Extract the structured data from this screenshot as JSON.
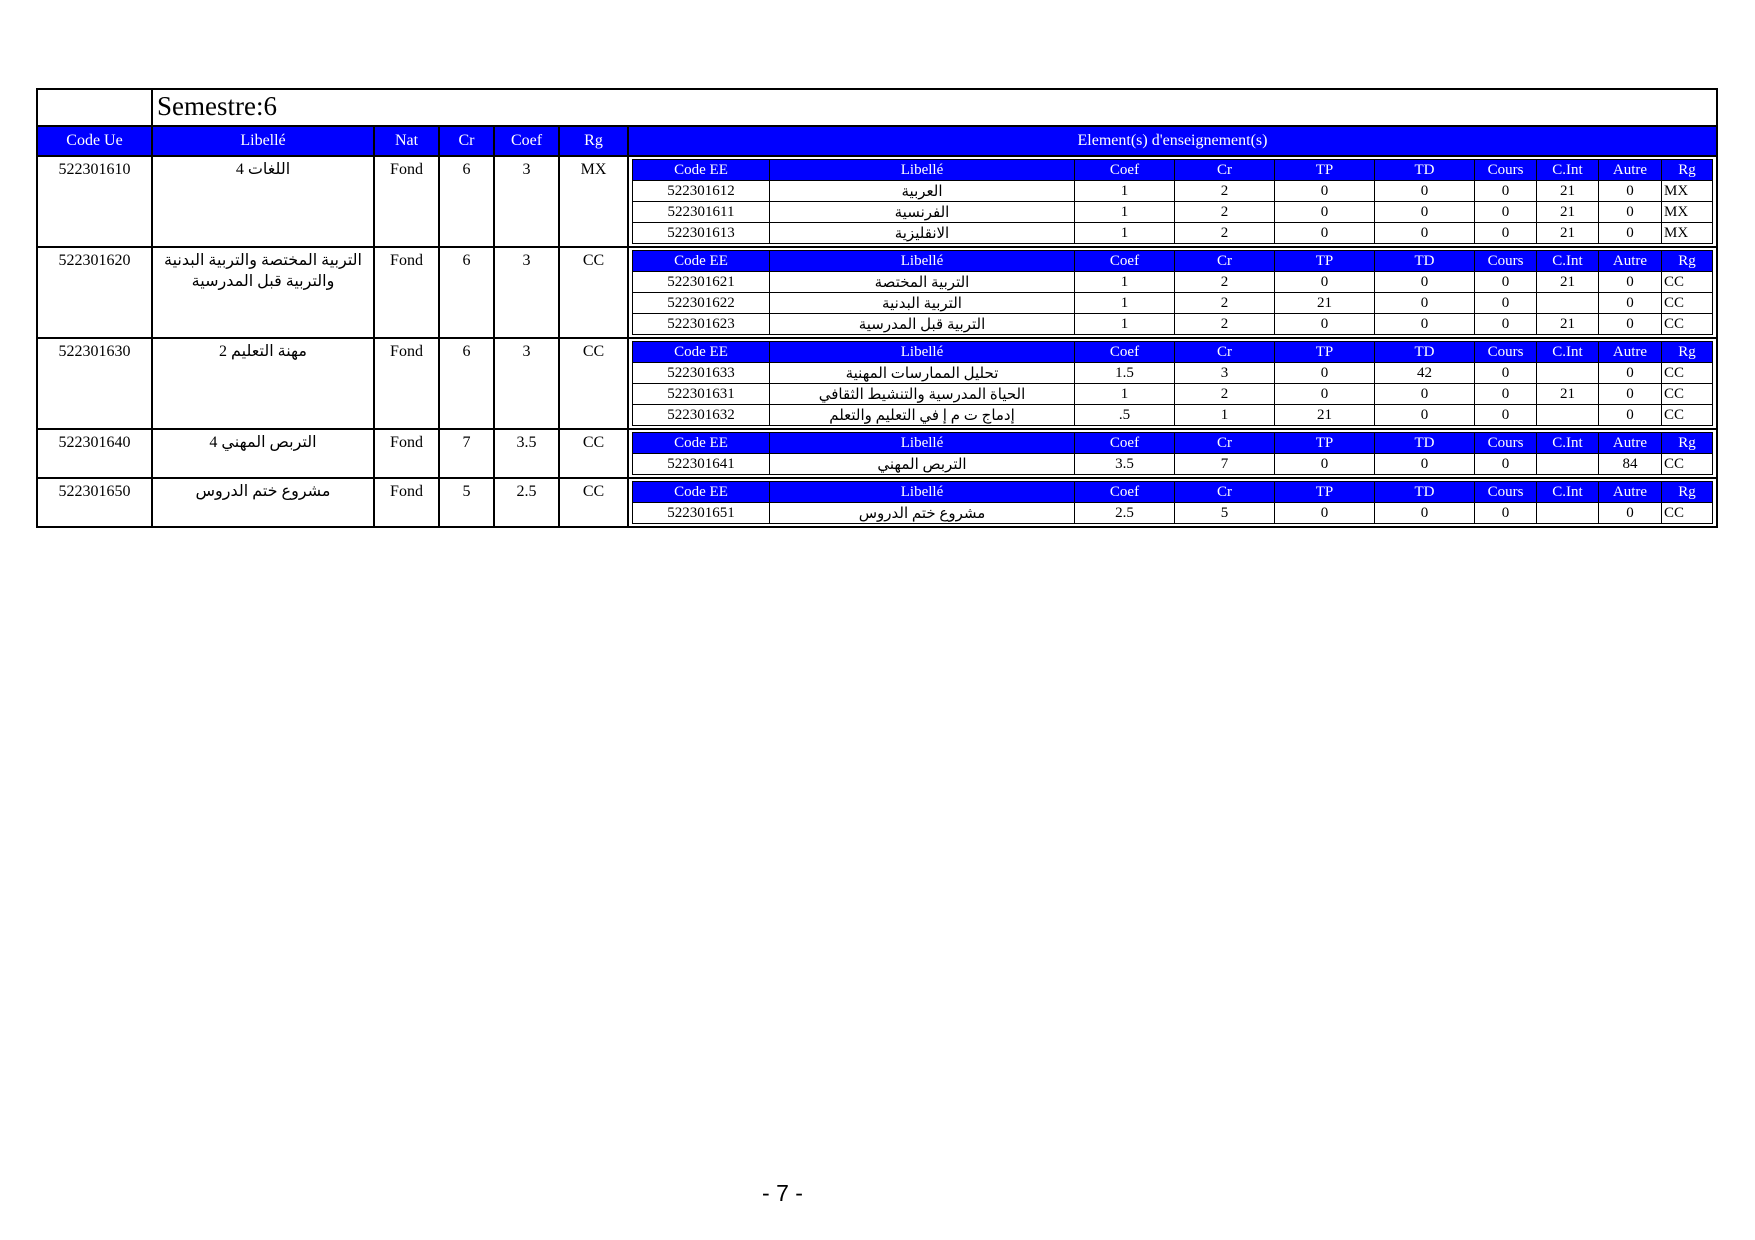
{
  "page": {
    "semester_title": "Semestre:6",
    "page_number": "- 7 -"
  },
  "colors": {
    "header_blue": "#0000FF",
    "header_text": "#FFFFFF",
    "border": "#000000"
  },
  "outer_table": {
    "headers": [
      "Code Ue",
      "Libellé",
      "Nat",
      "Cr",
      "Coef",
      "Rg"
    ],
    "elements_header": "Element(s) d'enseignement(s)",
    "ee_headers": [
      "Code EE",
      "Libellé",
      "Coef",
      "Cr",
      "TP",
      "TD",
      "Cours",
      "C.Int",
      "Autre",
      "Rg"
    ],
    "ue_blocks": [
      {
        "code_ue": "522301610",
        "libelle": "اللغات 4",
        "nat": "Fond",
        "cr": "6",
        "coef": "3",
        "rg": "MX",
        "elements": [
          {
            "code_ee": "522301612",
            "libelle": "العربية",
            "coef": "1",
            "cr": "2",
            "tp": "0",
            "td": "0",
            "cours": "0",
            "c_int": "21",
            "autre": "0",
            "rg": "MX"
          },
          {
            "code_ee": "522301611",
            "libelle": "الفرنسية",
            "coef": "1",
            "cr": "2",
            "tp": "0",
            "td": "0",
            "cours": "0",
            "c_int": "21",
            "autre": "0",
            "rg": "MX"
          },
          {
            "code_ee": "522301613",
            "libelle": "الانقليزية",
            "coef": "1",
            "cr": "2",
            "tp": "0",
            "td": "0",
            "cours": "0",
            "c_int": "21",
            "autre": "0",
            "rg": "MX"
          }
        ]
      },
      {
        "code_ue": "522301620",
        "libelle": "التربية المختصة والتربية البدنية والتربية قبل المدرسية",
        "nat": "Fond",
        "cr": "6",
        "coef": "3",
        "rg": "CC",
        "elements": [
          {
            "code_ee": "522301621",
            "libelle": "التربية المختصة",
            "coef": "1",
            "cr": "2",
            "tp": "0",
            "td": "0",
            "cours": "0",
            "c_int": "21",
            "autre": "0",
            "rg": "CC"
          },
          {
            "code_ee": "522301622",
            "libelle": "التربية البدنية",
            "coef": "1",
            "cr": "2",
            "tp": "21",
            "td": "0",
            "cours": "0",
            "c_int": "",
            "autre": "0",
            "rg": "CC"
          },
          {
            "code_ee": "522301623",
            "libelle": "التربية قبل المدرسية",
            "coef": "1",
            "cr": "2",
            "tp": "0",
            "td": "0",
            "cours": "0",
            "c_int": "21",
            "autre": "0",
            "rg": "CC"
          }
        ]
      },
      {
        "code_ue": "522301630",
        "libelle": "مهنة التعليم 2",
        "nat": "Fond",
        "cr": "6",
        "coef": "3",
        "rg": "CC",
        "elements": [
          {
            "code_ee": "522301633",
            "libelle": "تحليل الممارسات المهنية",
            "coef": "1.5",
            "cr": "3",
            "tp": "0",
            "td": "42",
            "cours": "0",
            "c_int": "",
            "autre": "0",
            "rg": "CC"
          },
          {
            "code_ee": "522301631",
            "libelle": "الحياة المدرسية والتنشيط الثقافي",
            "coef": "1",
            "cr": "2",
            "tp": "0",
            "td": "0",
            "cours": "0",
            "c_int": "21",
            "autre": "0",
            "rg": "CC"
          },
          {
            "code_ee": "522301632",
            "libelle": "إدماج ت م إ في التعليم والتعلم",
            "coef": ".5",
            "cr": "1",
            "tp": "21",
            "td": "0",
            "cours": "0",
            "c_int": "",
            "autre": "0",
            "rg": "CC"
          }
        ]
      },
      {
        "code_ue": "522301640",
        "libelle": "التربص المهني 4",
        "nat": "Fond",
        "cr": "7",
        "coef": "3.5",
        "rg": "CC",
        "elements": [
          {
            "code_ee": "522301641",
            "libelle": "التربص المهني",
            "coef": "3.5",
            "cr": "7",
            "tp": "0",
            "td": "0",
            "cours": "0",
            "c_int": "",
            "autre": "84",
            "rg": "CC"
          }
        ]
      },
      {
        "code_ue": "522301650",
        "libelle": "مشروع ختم الدروس",
        "nat": "Fond",
        "cr": "5",
        "coef": "2.5",
        "rg": "CC",
        "elements": [
          {
            "code_ee": "522301651",
            "libelle": "مشروع ختم الدروس",
            "coef": "2.5",
            "cr": "5",
            "tp": "0",
            "td": "0",
            "cours": "0",
            "c_int": "",
            "autre": "0",
            "rg": "CC"
          }
        ]
      }
    ]
  }
}
